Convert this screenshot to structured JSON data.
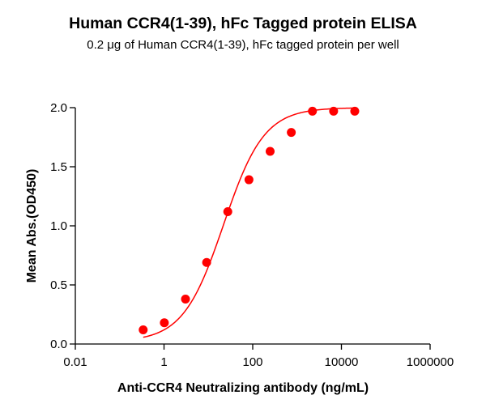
{
  "chart_data": {
    "type": "scatter",
    "title": "Human CCR4(1-39), hFc Tagged protein ELISA",
    "subtitle": "0.2 μg of Human CCR4(1-39), hFc tagged protein per well",
    "xlabel": "Anti-CCR4 Neutralizing antibody (ng/mL)",
    "ylabel": "Mean Abs.(OD450)",
    "xscale": "log",
    "xlim": [
      0.01,
      1000000
    ],
    "ylim": [
      0.0,
      2.0
    ],
    "xticks": [
      "0.01",
      "1",
      "100",
      "10000",
      "1000000"
    ],
    "yticks": [
      "0.0",
      "0.5",
      "1.0",
      "1.5",
      "2.0"
    ],
    "grid": false,
    "legend": null,
    "series": [
      {
        "name": "Anti-CCR4 Neutralizing antibody",
        "color": "#ff0000",
        "marker": "circle",
        "fit": "4PL sigmoidal curve",
        "x": [
          0.339,
          1.016,
          3.05,
          9.14,
          27.4,
          82.3,
          247,
          741,
          2222,
          6667,
          20000
        ],
        "y": [
          0.12,
          0.18,
          0.38,
          0.69,
          1.12,
          1.39,
          1.63,
          1.79,
          1.97,
          1.97,
          1.97
        ]
      }
    ]
  }
}
